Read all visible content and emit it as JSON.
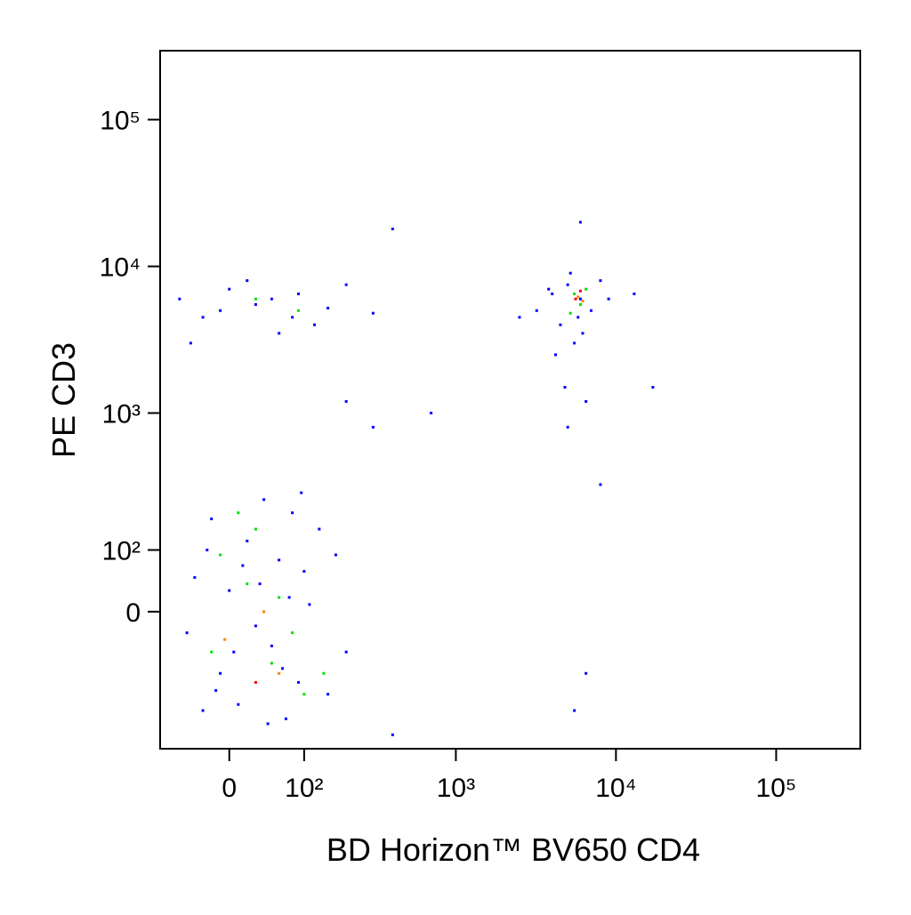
{
  "chart_data": {
    "type": "scatter",
    "xscale": "biexponential",
    "yscale": "biexponential",
    "xlabel": "BD Horizon™ BV650  CD4",
    "ylabel": "PE   CD3",
    "xlim": [
      -90,
      335000
    ],
    "ylim": [
      -376,
      295000
    ],
    "xticks": [
      0,
      {
        "value": 100,
        "label": "10²"
      },
      {
        "value": 1000,
        "label": "10³"
      },
      {
        "value": 10000,
        "label": "10⁴"
      },
      {
        "value": 100000,
        "label": "10⁵"
      }
    ],
    "yticks": [
      0,
      {
        "value": 100,
        "label": "10²"
      },
      {
        "value": 1000,
        "label": "10³"
      },
      {
        "value": 10000,
        "label": "10⁴"
      },
      {
        "value": 100000,
        "label": "10⁵"
      }
    ],
    "series": [
      {
        "color": "#0000ff",
        "x": [
          -40,
          -10,
          20,
          50,
          80,
          110,
          150,
          -30,
          0,
          30,
          60,
          90,
          130,
          -50,
          -20,
          10,
          40,
          70,
          100,
          200,
          -25,
          5,
          35,
          65,
          95,
          -15,
          15,
          45,
          75,
          170,
          -60,
          -30,
          0,
          30,
          60,
          90,
          120,
          200,
          -45,
          -10,
          20,
          50,
          80,
          150,
          300,
          3200,
          4000,
          4500,
          5000,
          5500,
          6000,
          7000,
          8000,
          4200,
          4800,
          5200,
          5800,
          6500,
          3800,
          5000,
          6200,
          2500,
          9000,
          13000,
          400,
          700,
          300,
          200,
          6500,
          5500,
          400,
          6000,
          17000,
          8000
        ],
        "y": [
          50,
          -100,
          120,
          -50,
          200,
          10,
          -150,
          -200,
          30,
          -20,
          80,
          -120,
          150,
          -30,
          180,
          -180,
          250,
          -230,
          60,
          -60,
          100,
          -60,
          40,
          -90,
          280,
          -140,
          70,
          -250,
          20,
          90,
          6000,
          4500,
          7000,
          5500,
          3500,
          6500,
          4000,
          7500,
          3000,
          5000,
          8000,
          6000,
          4500,
          5200,
          4800,
          5000,
          6500,
          4000,
          7500,
          3000,
          6000,
          5000,
          8000,
          2500,
          1500,
          9000,
          4500,
          1200,
          7000,
          800,
          3500,
          4500,
          6000,
          6500,
          18000,
          1000,
          800,
          1200,
          -100,
          -200,
          -300,
          20000,
          1500,
          320
        ]
      },
      {
        "color": "#00e000",
        "x": [
          20,
          50,
          -10,
          80,
          30,
          100,
          60,
          -20,
          10,
          140,
          5500,
          6000,
          5200,
          6500,
          30,
          90
        ],
        "y": [
          40,
          -80,
          90,
          -30,
          150,
          -150,
          20,
          -60,
          200,
          -100,
          6500,
          5500,
          4800,
          7000,
          6000,
          5000
        ]
      },
      {
        "color": "#ff8000",
        "x": [
          40,
          60,
          5800,
          6200,
          -5
        ],
        "y": [
          0,
          -100,
          6200,
          5800,
          -40
        ]
      },
      {
        "color": "#ff0000",
        "x": [
          5600,
          30,
          6000
        ],
        "y": [
          6000,
          -120,
          6800
        ]
      }
    ]
  }
}
